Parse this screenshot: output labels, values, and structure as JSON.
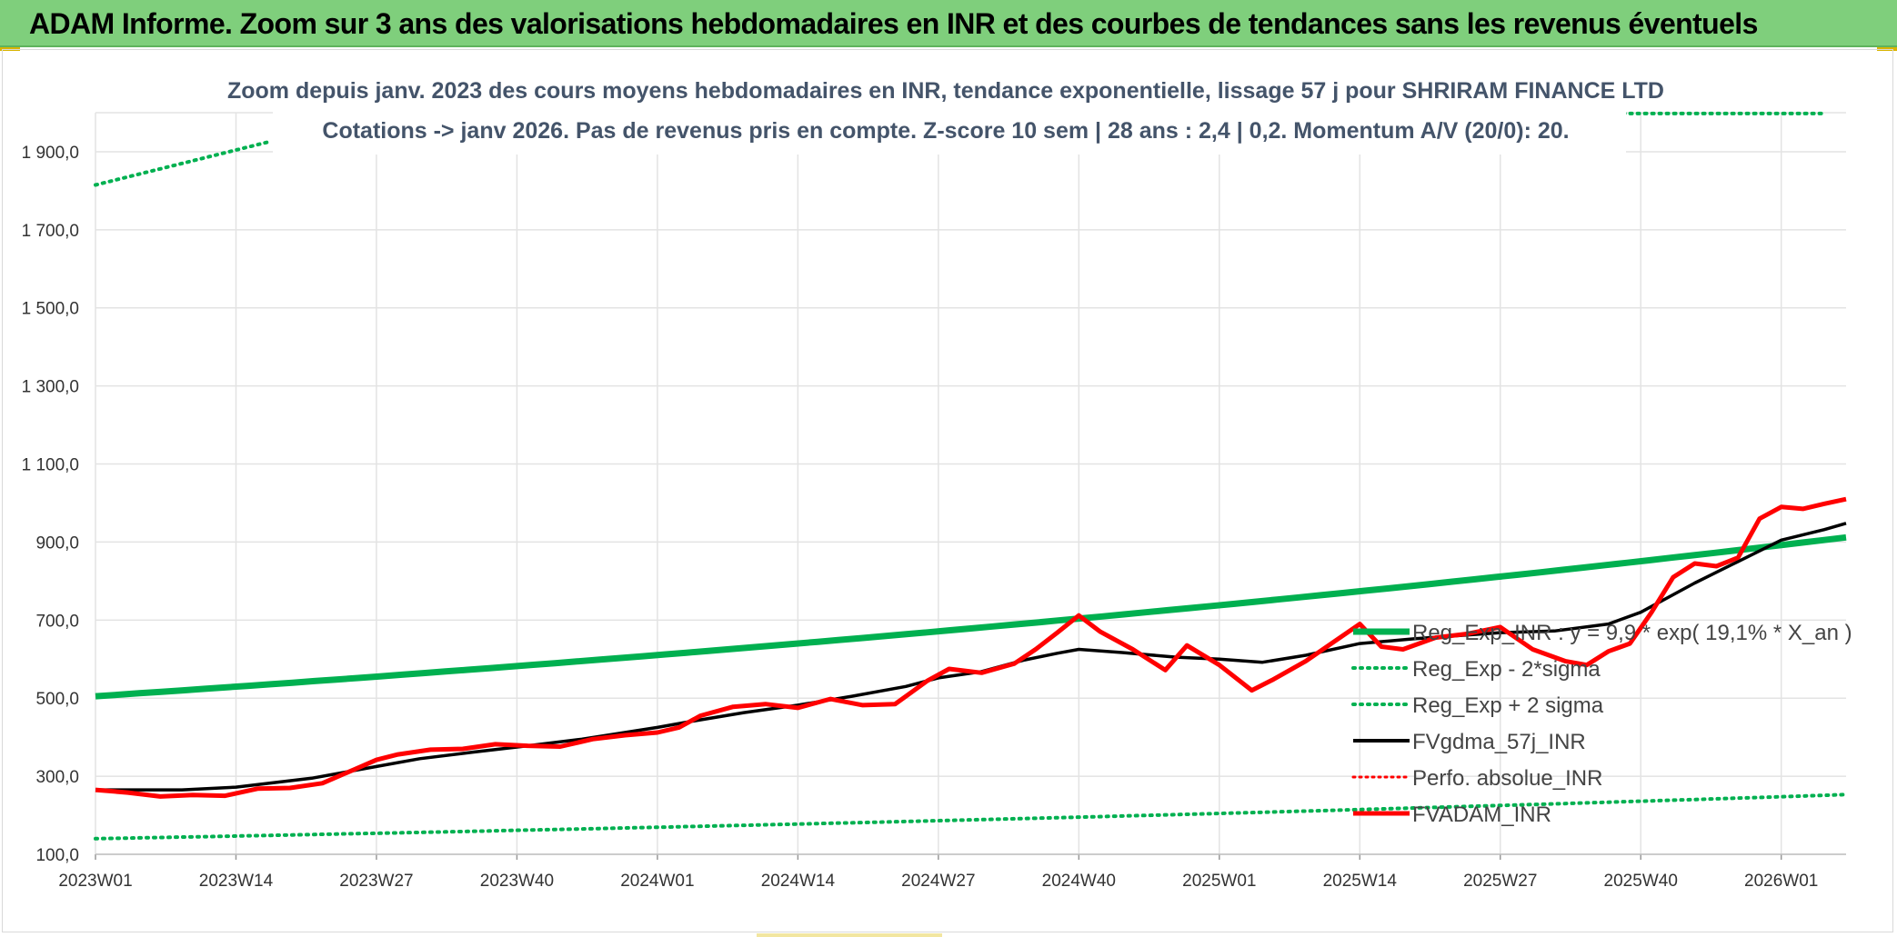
{
  "banner": {
    "title": "ADAM Informe. Zoom sur 3 ans des valorisations hebdomadaires en INR et des courbes de tendances sans les revenus éventuels"
  },
  "colors": {
    "banner_bg": "#7fcf7c",
    "reg_exp": "#00b050",
    "fvgdma": "#000000",
    "perfo": "#ff0000",
    "fvadam": "#ff0000",
    "grid": "#e3e3e3"
  },
  "chart_data": {
    "type": "line",
    "title_line1": "Zoom depuis janv. 2023 des cours moyens hebdomadaires en INR, tendance exponentielle, lissage 57 j pour SHRIRAM FINANCE LTD",
    "title_line2": "Cotations -> janv 2026. Pas de revenus pris en compte. Z-score 10 sem | 28 ans : 2,4 | 0,2. Momentum A/V (20/0): 20.",
    "xlabel": "",
    "ylabel": "",
    "ylim": [
      100,
      2000
    ],
    "yticks": [
      "100,0",
      "300,0",
      "500,0",
      "700,0",
      "900,0",
      "1 100,0",
      "1 300,0",
      "1 500,0",
      "1 700,0",
      "1 900,0"
    ],
    "ytick_values": [
      100,
      300,
      500,
      700,
      900,
      1100,
      1300,
      1500,
      1700,
      1900
    ],
    "xlim": [
      0,
      162
    ],
    "xticks": [
      "2023W01",
      "2023W14",
      "2023W27",
      "2023W40",
      "2024W01",
      "2024W14",
      "2024W27",
      "2024W40",
      "2025W01",
      "2025W14",
      "2025W27",
      "2025W40",
      "2026W01"
    ],
    "xtick_values": [
      0,
      13,
      26,
      39,
      52,
      65,
      78,
      91,
      104,
      117,
      130,
      143,
      156
    ],
    "grid": true,
    "legend_position": "right",
    "legend": [
      "Reg_Exp_INR : y = 9,9 * exp( 19,1% *  X_an )",
      "Reg_Exp - 2*sigma",
      "Reg_Exp + 2 sigma",
      "FVgdma_57j_INR",
      "Perfo. absolue_INR",
      "FVADAM_INR"
    ],
    "series": [
      {
        "name": "Reg_Exp_INR",
        "style": "solid",
        "color": "#00b050",
        "x": [
          0,
          162
        ],
        "values": [
          505,
          912
        ],
        "curve": "exponential"
      },
      {
        "name": "Reg_Exp - 2*sigma",
        "style": "dotted",
        "color": "#00b050",
        "x": [
          0,
          162
        ],
        "values": [
          140,
          253
        ],
        "curve": "exponential"
      },
      {
        "name": "Reg_Exp + 2 sigma",
        "style": "dotted",
        "color": "#00b050",
        "segments": [
          {
            "x": [
              0,
              16
            ],
            "values": [
              1815,
              1925
            ]
          },
          {
            "x": [
              140,
              160
            ],
            "values": [
              1998,
              1998
            ]
          }
        ]
      },
      {
        "name": "FVgdma_57j_INR",
        "style": "solid",
        "color": "#000000",
        "x": [
          0,
          8,
          13,
          20,
          26,
          30,
          35,
          40,
          45,
          52,
          55,
          60,
          65,
          70,
          75,
          78,
          82,
          86,
          89,
          91,
          95,
          100,
          104,
          108,
          112,
          117,
          122,
          126,
          130,
          135,
          140,
          143,
          148,
          152,
          156,
          160,
          162
        ],
        "values": [
          265,
          265,
          272,
          295,
          325,
          345,
          362,
          378,
          395,
          425,
          440,
          463,
          482,
          505,
          530,
          552,
          568,
          598,
          615,
          625,
          617,
          605,
          600,
          592,
          610,
          640,
          652,
          660,
          668,
          672,
          690,
          720,
          795,
          850,
          905,
          932,
          948
        ]
      },
      {
        "name": "Perfo. absolue_INR",
        "style": "dotted",
        "color": "#ff0000",
        "x": [],
        "values": []
      },
      {
        "name": "FVADAM_INR",
        "style": "solid",
        "color": "#ff0000",
        "x": [
          0,
          3,
          6,
          9,
          12,
          15,
          18,
          21,
          24,
          26,
          28,
          31,
          34,
          37,
          40,
          43,
          46,
          49,
          52,
          54,
          56,
          59,
          62,
          65,
          68,
          71,
          74,
          77,
          79,
          82,
          85,
          87,
          89,
          91,
          93,
          96,
          99,
          101,
          104,
          107,
          109,
          112,
          115,
          117,
          119,
          121,
          124,
          127,
          130,
          133,
          136,
          138,
          140,
          142,
          144,
          146,
          148,
          150,
          152,
          154,
          156,
          158,
          160,
          162
        ],
        "values": [
          265,
          258,
          248,
          252,
          250,
          268,
          270,
          282,
          318,
          342,
          356,
          368,
          370,
          382,
          378,
          376,
          395,
          405,
          412,
          425,
          455,
          478,
          485,
          475,
          498,
          482,
          485,
          545,
          575,
          565,
          588,
          625,
          668,
          712,
          670,
          625,
          572,
          635,
          585,
          520,
          548,
          595,
          652,
          690,
          632,
          625,
          655,
          665,
          682,
          625,
          595,
          585,
          620,
          640,
          720,
          810,
          845,
          838,
          860,
          960,
          990,
          985,
          998,
          1010
        ]
      }
    ]
  }
}
